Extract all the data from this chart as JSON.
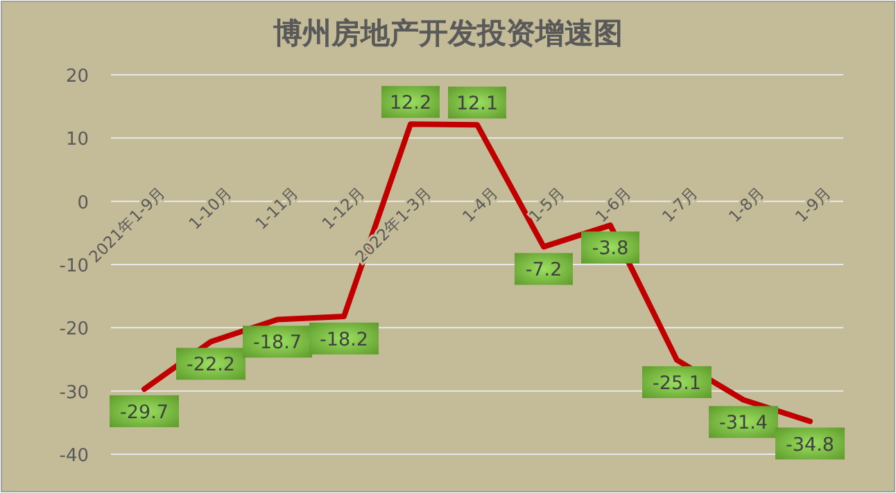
{
  "chart_data": {
    "type": "line",
    "title": "博州房地产开发投资增速图",
    "categories": [
      "2021年1-9月",
      "1-10月",
      "1-11月",
      "1-12月",
      "2022年1-3月",
      "1-4月",
      "1-5月",
      "1-6月",
      "1-7月",
      "1-8月",
      "1-9月"
    ],
    "series": [
      {
        "color": "#c00000",
        "values": [
          -29.7,
          -22.2,
          -18.7,
          -18.2,
          12.2,
          12.1,
          -7.2,
          -3.8,
          -25.1,
          -31.4,
          -34.8
        ]
      }
    ],
    "ylim": [
      -40,
      20
    ],
    "yticks": [
      -40,
      -30,
      -20,
      -10,
      0,
      10,
      20
    ],
    "grid": "y",
    "data_labels": true,
    "marker": "none",
    "line_style": "solid"
  }
}
